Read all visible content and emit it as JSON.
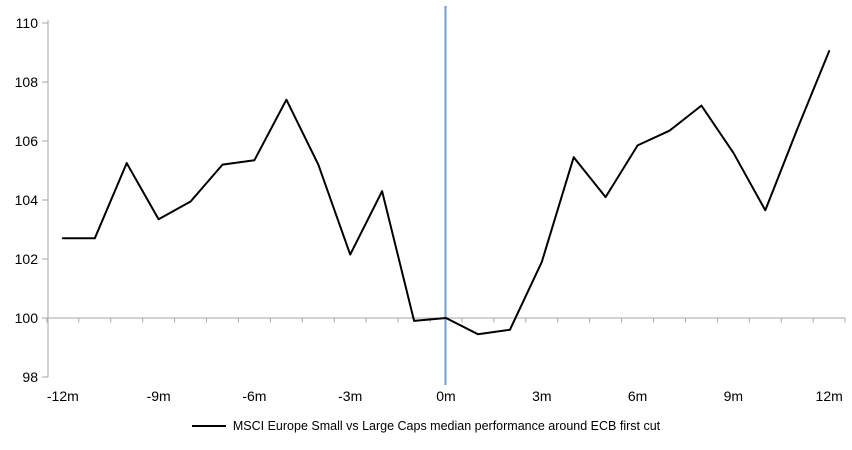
{
  "chart_data": {
    "type": "line",
    "title": "",
    "x": [
      -12,
      -11,
      -10,
      -9,
      -8,
      -7,
      -6,
      -5,
      -4,
      -3,
      -2,
      -1,
      0,
      1,
      2,
      3,
      4,
      5,
      6,
      7,
      8,
      9,
      10,
      11,
      12
    ],
    "series": [
      {
        "name": "MSCI Europe Small vs Large Caps median performance around ECB first cut",
        "color": "#000000",
        "values": [
          102.7,
          102.7,
          105.25,
          103.35,
          103.95,
          105.2,
          105.35,
          107.4,
          105.2,
          102.15,
          104.3,
          99.9,
          100.0,
          99.45,
          99.6,
          101.9,
          105.45,
          104.1,
          105.85,
          106.35,
          107.2,
          105.6,
          103.65,
          106.4,
          109.05
        ]
      }
    ],
    "x_axis": {
      "tick_labels": [
        "-12m",
        "-9m",
        "-6m",
        "-3m",
        "0m",
        "3m",
        "6m",
        "9m",
        "12m"
      ],
      "tick_values": [
        -12,
        -9,
        -6,
        -3,
        0,
        3,
        6,
        9,
        12
      ],
      "minor_tick_step": 1,
      "range": [
        -12.5,
        12.5
      ],
      "crosses_at": 100
    },
    "y_axis": {
      "tick_labels": [
        "98",
        "100",
        "102",
        "104",
        "106",
        "108",
        "110"
      ],
      "tick_values": [
        98,
        100,
        102,
        104,
        106,
        108,
        110
      ],
      "range": [
        98,
        110
      ]
    },
    "event_line": {
      "x": 0,
      "color": "#7ba4cf"
    },
    "axis_color": "#a6a6a6",
    "text_color": "#000000",
    "background": "#ffffff",
    "grid": "off",
    "legend": {
      "position": "bottom-center",
      "entries": [
        {
          "label": "MSCI Europe Small vs Large Caps median performance around ECB first cut",
          "color": "#000000"
        }
      ]
    }
  }
}
